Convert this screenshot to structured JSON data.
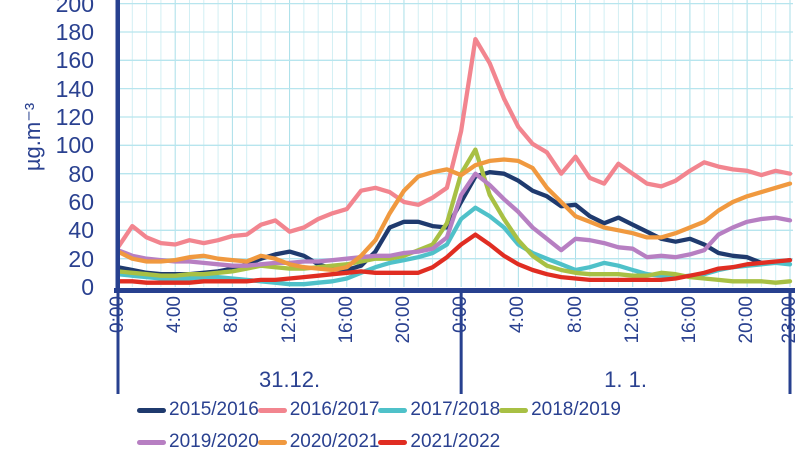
{
  "chart_data": {
    "type": "line",
    "title": "",
    "ylabel": "µg.m⁻³",
    "ylim": [
      0,
      200
    ],
    "ytick_step": 20,
    "x_unit": "hour",
    "hours_total": 48,
    "xticks": [
      {
        "t": 0,
        "label": "0:00"
      },
      {
        "t": 4,
        "label": "4:00"
      },
      {
        "t": 8,
        "label": "8:00"
      },
      {
        "t": 12,
        "label": "12:00"
      },
      {
        "t": 16,
        "label": "16:00"
      },
      {
        "t": 20,
        "label": "20:00"
      },
      {
        "t": 24,
        "label": "0:00"
      },
      {
        "t": 28,
        "label": "4:00"
      },
      {
        "t": 32,
        "label": "8:00"
      },
      {
        "t": 36,
        "label": "12:00"
      },
      {
        "t": 40,
        "label": "16:00"
      },
      {
        "t": 44,
        "label": "20:00"
      },
      {
        "t": 47,
        "label": "23:00"
      }
    ],
    "day_labels": [
      "31.12.",
      "1. 1."
    ],
    "day_boundaries_t": [
      0,
      24,
      47
    ],
    "grid": {
      "on": true,
      "minor_color": "#d2eff4",
      "major_color": "#a9dfe9",
      "h_color": "#b7e5ee"
    },
    "axis_color": "#27408f",
    "text_color": "#2a4190",
    "legend_position": "bottom",
    "series": [
      {
        "name": "2015/2016",
        "color": "#1f3a6e",
        "values": [
          14,
          12,
          10,
          9,
          9,
          9,
          10,
          11,
          13,
          16,
          20,
          23,
          25,
          22,
          16,
          13,
          12,
          15,
          25,
          42,
          46,
          46,
          43,
          42,
          60,
          78,
          81,
          80,
          75,
          68,
          64,
          57,
          58,
          50,
          45,
          49,
          44,
          39,
          34,
          32,
          34,
          30,
          24,
          22,
          21,
          17,
          17,
          19
        ]
      },
      {
        "name": "2016/2017",
        "color": "#f2858f",
        "values": [
          28,
          43,
          35,
          31,
          30,
          33,
          31,
          33,
          36,
          37,
          44,
          47,
          39,
          42,
          48,
          52,
          55,
          68,
          70,
          67,
          60,
          58,
          63,
          70,
          110,
          175,
          158,
          133,
          113,
          101,
          95,
          80,
          92,
          77,
          73,
          87,
          80,
          73,
          71,
          75,
          82,
          88,
          85,
          83,
          82,
          79,
          82,
          80
        ]
      },
      {
        "name": "2017/2018",
        "color": "#4fc1c9",
        "values": [
          9,
          8,
          7,
          6,
          6,
          6,
          7,
          7,
          6,
          5,
          4,
          3,
          2,
          2,
          3,
          4,
          6,
          10,
          14,
          17,
          19,
          21,
          24,
          30,
          48,
          56,
          50,
          42,
          30,
          24,
          20,
          16,
          12,
          14,
          17,
          15,
          12,
          9,
          8,
          7,
          8,
          9,
          12,
          14,
          15,
          16,
          17,
          16
        ]
      },
      {
        "name": "2018/2019",
        "color": "#a8c044",
        "values": [
          11,
          10,
          9,
          8,
          8,
          9,
          9,
          10,
          11,
          13,
          15,
          14,
          13,
          13,
          14,
          15,
          16,
          18,
          20,
          20,
          22,
          26,
          30,
          45,
          80,
          97,
          65,
          48,
          33,
          22,
          15,
          12,
          10,
          9,
          9,
          9,
          8,
          8,
          10,
          9,
          7,
          6,
          5,
          4,
          4,
          4,
          3,
          4
        ]
      },
      {
        "name": "2019/2020",
        "color": "#b77fc2",
        "values": [
          26,
          22,
          20,
          19,
          18,
          18,
          17,
          16,
          15,
          15,
          16,
          17,
          17,
          18,
          18,
          19,
          20,
          21,
          22,
          22,
          24,
          25,
          27,
          35,
          65,
          80,
          72,
          62,
          53,
          42,
          34,
          26,
          34,
          33,
          31,
          28,
          27,
          21,
          22,
          21,
          23,
          26,
          37,
          42,
          46,
          48,
          49,
          47
        ]
      },
      {
        "name": "2020/2021",
        "color": "#f0993f",
        "values": [
          25,
          20,
          18,
          18,
          19,
          21,
          22,
          20,
          19,
          18,
          22,
          20,
          16,
          14,
          13,
          12,
          14,
          22,
          33,
          52,
          68,
          78,
          81,
          83,
          79,
          86,
          89,
          90,
          89,
          84,
          70,
          60,
          50,
          46,
          42,
          40,
          38,
          35,
          35,
          38,
          42,
          46,
          54,
          60,
          64,
          67,
          70,
          73
        ]
      },
      {
        "name": "2021/2022",
        "color": "#e02d22",
        "values": [
          4,
          4,
          3,
          3,
          3,
          3,
          4,
          4,
          4,
          4,
          5,
          5,
          6,
          7,
          8,
          9,
          10,
          11,
          10,
          10,
          10,
          10,
          14,
          21,
          30,
          37,
          30,
          22,
          16,
          12,
          9,
          7,
          6,
          5,
          5,
          5,
          5,
          5,
          5,
          6,
          8,
          10,
          13,
          14,
          16,
          17,
          18,
          19
        ]
      }
    ]
  }
}
